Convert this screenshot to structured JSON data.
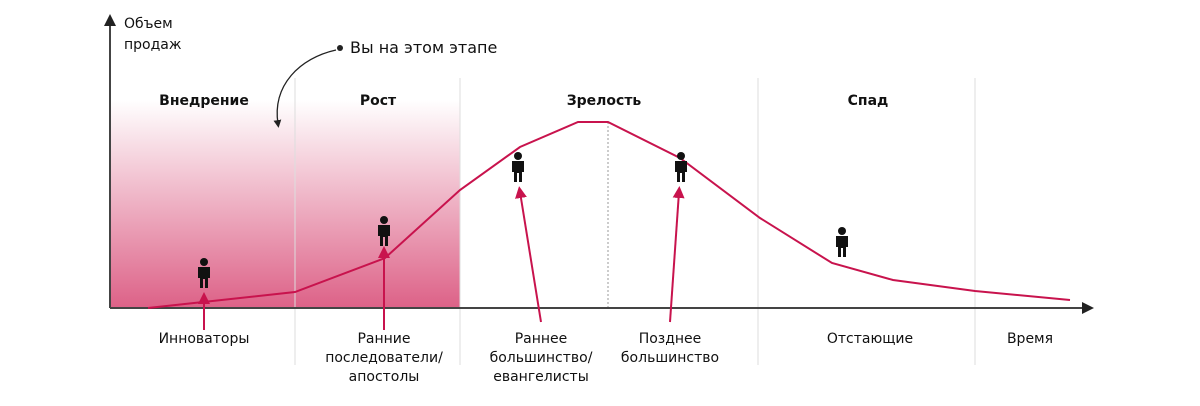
{
  "axis_label": [
    "Объем",
    "продаж"
  ],
  "annotation": "Вы на этом этапе",
  "stages": [
    "Внедрение",
    "Рост",
    "Зрелость",
    "Спад"
  ],
  "segments": [
    [
      "Инноваторы"
    ],
    [
      "Ранние",
      "последователи/",
      "апостолы"
    ],
    [
      "Раннее",
      "большинство/",
      "евангелисты"
    ],
    [
      "Позднее",
      "большинство"
    ],
    [
      "Отстающие"
    ],
    [
      "Время"
    ]
  ]
}
